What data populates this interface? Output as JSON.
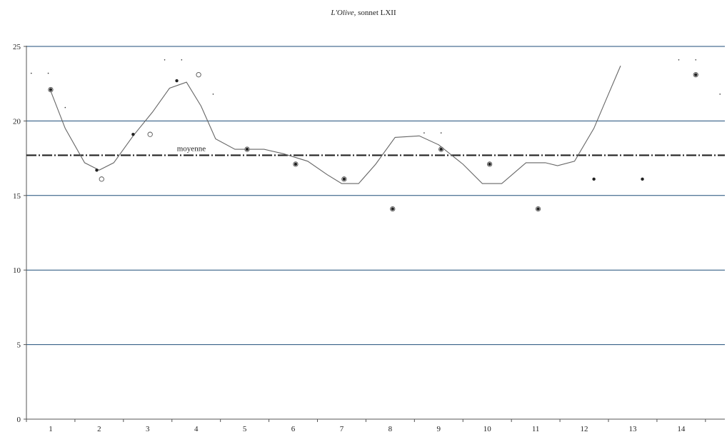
{
  "chart_data": {
    "type": "scatter",
    "title_italic": "L'Olive",
    "title_rest": ", sonnet LXII",
    "xlabel": "",
    "ylabel": "",
    "xlim": [
      0.5,
      14.9
    ],
    "ylim": [
      0,
      25
    ],
    "x_ticks": [
      1,
      2,
      3,
      4,
      5,
      6,
      7,
      8,
      9,
      10,
      11,
      12,
      13,
      14
    ],
    "y_ticks": [
      0,
      5,
      10,
      15,
      20,
      25
    ],
    "grid": true,
    "average": {
      "label": "moyenne",
      "value": 17.7
    },
    "series": [
      {
        "points": [
          [
            1.0,
            22.1
          ],
          [
            1.95,
            16.7
          ],
          [
            2.7,
            19.1
          ],
          [
            3.6,
            22.7
          ],
          [
            5.05,
            18.1
          ],
          [
            6.05,
            17.1
          ],
          [
            7.05,
            16.1
          ],
          [
            8.05,
            14.1
          ],
          [
            9.05,
            18.1
          ],
          [
            10.05,
            17.1
          ],
          [
            11.05,
            14.1
          ],
          [
            12.2,
            16.1
          ],
          [
            13.2,
            16.1
          ],
          [
            14.3,
            23.1
          ]
        ]
      },
      {
        "points": [
          [
            1.0,
            22.1
          ],
          [
            2.05,
            16.1
          ],
          [
            3.05,
            19.1
          ],
          [
            4.05,
            23.1
          ],
          [
            5.05,
            18.1
          ],
          [
            6.05,
            17.1
          ],
          [
            7.05,
            16.1
          ],
          [
            8.05,
            14.1
          ],
          [
            9.05,
            18.1
          ],
          [
            10.05,
            17.1
          ],
          [
            11.05,
            14.1
          ],
          [
            14.3,
            23.1
          ]
        ]
      }
    ],
    "curve": [
      [
        1.0,
        22.0
      ],
      [
        1.3,
        19.5
      ],
      [
        1.7,
        17.2
      ],
      [
        2.0,
        16.7
      ],
      [
        2.3,
        17.2
      ],
      [
        2.7,
        19.0
      ],
      [
        3.1,
        20.6
      ],
      [
        3.45,
        22.2
      ],
      [
        3.8,
        22.6
      ],
      [
        4.1,
        21.0
      ],
      [
        4.4,
        18.8
      ],
      [
        4.8,
        18.1
      ],
      [
        5.4,
        18.1
      ],
      [
        5.8,
        17.8
      ],
      [
        6.3,
        17.3
      ],
      [
        6.7,
        16.4
      ],
      [
        7.0,
        15.8
      ],
      [
        7.35,
        15.8
      ],
      [
        7.7,
        17.1
      ],
      [
        8.1,
        18.9
      ],
      [
        8.6,
        19.0
      ],
      [
        9.0,
        18.4
      ],
      [
        9.5,
        17.1
      ],
      [
        9.9,
        15.8
      ],
      [
        10.3,
        15.8
      ],
      [
        10.8,
        17.2
      ],
      [
        11.2,
        17.2
      ],
      [
        11.45,
        17.0
      ],
      [
        11.8,
        17.3
      ],
      [
        12.2,
        19.5
      ],
      [
        12.5,
        21.8
      ],
      [
        12.75,
        23.7
      ]
    ],
    "faint_marks": [
      [
        0.6,
        23.2
      ],
      [
        0.95,
        23.2
      ],
      [
        1.3,
        20.9
      ],
      [
        3.35,
        24.1
      ],
      [
        3.7,
        24.1
      ],
      [
        4.35,
        21.8
      ],
      [
        8.7,
        19.2
      ],
      [
        9.05,
        19.2
      ],
      [
        13.95,
        24.1
      ],
      [
        14.3,
        24.1
      ],
      [
        14.8,
        21.8
      ]
    ]
  }
}
